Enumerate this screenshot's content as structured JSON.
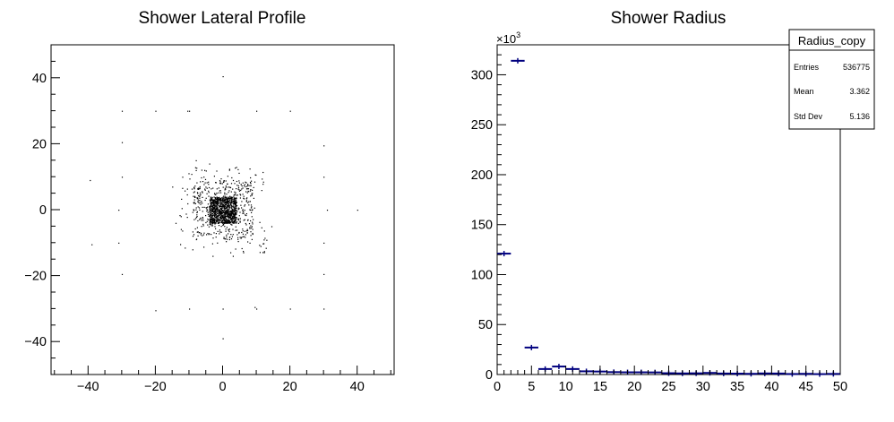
{
  "chart_data": [
    {
      "type": "scatter",
      "title": "Shower Lateral Profile",
      "xlabel": "",
      "ylabel": "",
      "xlim": [
        -51,
        51
      ],
      "ylim": [
        -50,
        50
      ],
      "x_ticks": [
        -40,
        -20,
        0,
        20,
        40
      ],
      "y_ticks": [
        -40,
        -20,
        0,
        20,
        40
      ],
      "x_tick_labels": [
        "−40",
        "−20",
        "0",
        "20",
        "40"
      ],
      "y_tick_labels": [
        "−40",
        "−20",
        "0",
        "20",
        "40"
      ],
      "grid": false,
      "marker_color": "#000000",
      "points": [
        [
          0,
          40.5
        ],
        [
          -30,
          30
        ],
        [
          -20,
          30
        ],
        [
          -10,
          30
        ],
        [
          10,
          30
        ],
        [
          20,
          30
        ],
        [
          -30,
          20.5
        ],
        [
          30,
          19.5
        ],
        [
          -30,
          10
        ],
        [
          30,
          10
        ],
        [
          -39.5,
          9
        ],
        [
          -31,
          0
        ],
        [
          31,
          0
        ],
        [
          40,
          0
        ],
        [
          -31,
          -10
        ],
        [
          30,
          -10
        ],
        [
          -39,
          -10.5
        ],
        [
          -30,
          -19.5
        ],
        [
          30,
          -19.5
        ],
        [
          -20,
          -30.5
        ],
        [
          -10,
          -30
        ],
        [
          10,
          -30
        ],
        [
          20,
          -30
        ],
        [
          30,
          -30
        ],
        [
          0,
          -39
        ],
        [
          0,
          -30
        ],
        [
          9.5,
          -29.5
        ],
        [
          -10.5,
          30
        ],
        [
          -8,
          15
        ],
        [
          4,
          13
        ],
        [
          8,
          12.5
        ],
        [
          -12,
          10
        ],
        [
          12,
          8.5
        ],
        [
          -15,
          7
        ],
        [
          -14,
          -4
        ],
        [
          14.5,
          -5
        ],
        [
          -9,
          -12
        ],
        [
          6,
          -12.5
        ],
        [
          -3,
          -14
        ],
        [
          3,
          -14
        ],
        [
          -4,
          14
        ],
        [
          8,
          -10
        ],
        [
          -8,
          12
        ]
      ],
      "dense_regions": [
        {
          "x": [
            -4,
            4
          ],
          "y": [
            -4,
            4
          ],
          "count": 900
        },
        {
          "x": [
            -9,
            9
          ],
          "y": [
            -9,
            9
          ],
          "count": 420
        },
        {
          "x": [
            -13,
            13
          ],
          "y": [
            -13,
            13
          ],
          "count": 140
        }
      ]
    },
    {
      "type": "bar",
      "title": "Shower Radius",
      "xlabel": "",
      "ylabel": "",
      "y_multiplier_label": "×10",
      "y_multiplier_exponent": "3",
      "xlim": [
        0,
        50
      ],
      "ylim": [
        0,
        330
      ],
      "x_ticks": [
        0,
        5,
        10,
        15,
        20,
        25,
        30,
        35,
        40,
        45,
        50
      ],
      "x_tick_labels": [
        "0",
        "5",
        "10",
        "15",
        "20",
        "25",
        "30",
        "35",
        "40",
        "45",
        "50"
      ],
      "y_ticks": [
        0,
        50,
        100,
        150,
        200,
        250,
        300
      ],
      "y_tick_labels": [
        "0",
        "50",
        "100",
        "150",
        "200",
        "250",
        "300"
      ],
      "grid": false,
      "bin_width": 2,
      "series_color": "#00007f",
      "bins": [
        {
          "x": 1,
          "value": 121
        },
        {
          "x": 3,
          "value": 314
        },
        {
          "x": 5,
          "value": 27
        },
        {
          "x": 7,
          "value": 5.5
        },
        {
          "x": 9,
          "value": 8
        },
        {
          "x": 11,
          "value": 5.5
        },
        {
          "x": 13,
          "value": 3.2
        },
        {
          "x": 15,
          "value": 3
        },
        {
          "x": 17,
          "value": 2.4
        },
        {
          "x": 19,
          "value": 2.2
        },
        {
          "x": 21,
          "value": 2.2
        },
        {
          "x": 23,
          "value": 2.1
        },
        {
          "x": 25,
          "value": 1.3
        },
        {
          "x": 27,
          "value": 1.1
        },
        {
          "x": 29,
          "value": 1.2
        },
        {
          "x": 31,
          "value": 1.6
        },
        {
          "x": 33,
          "value": 1.0
        },
        {
          "x": 35,
          "value": 0.9
        },
        {
          "x": 37,
          "value": 0.7
        },
        {
          "x": 39,
          "value": 1.1
        },
        {
          "x": 41,
          "value": 1.0
        },
        {
          "x": 43,
          "value": 0.5
        },
        {
          "x": 45,
          "value": 0.7
        },
        {
          "x": 47,
          "value": 0.4
        },
        {
          "x": 49,
          "value": 0.6
        }
      ],
      "stats_box": {
        "title": "Radius_copy",
        "rows": [
          {
            "label": "Entries",
            "value": "536775"
          },
          {
            "label": "Mean",
            "value": "3.362"
          },
          {
            "label": "Std Dev",
            "value": "5.136"
          }
        ]
      }
    }
  ]
}
